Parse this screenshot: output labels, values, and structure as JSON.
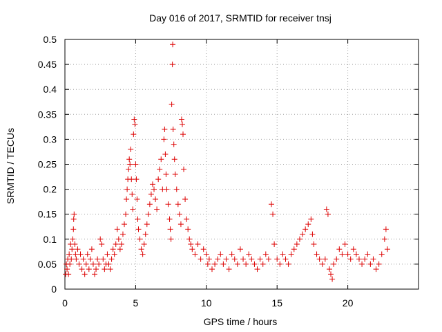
{
  "chart_data": {
    "type": "scatter",
    "title": "Day 016 of 2017, SRMTID for receiver tnsj",
    "xlabel": "GPS time / hours",
    "ylabel": "SRMTID / TECUs",
    "xlim": [
      0,
      25
    ],
    "ylim": [
      0,
      0.5
    ],
    "xticks": [
      0,
      5,
      10,
      15,
      20
    ],
    "xtick_labels": [
      "0",
      "5",
      "10",
      "15",
      "20"
    ],
    "yticks": [
      0,
      0.05,
      0.1,
      0.15,
      0.2,
      0.25,
      0.3,
      0.35,
      0.4,
      0.45,
      0.5
    ],
    "ytick_labels": [
      "0",
      "0.05",
      "0.1",
      "0.15",
      "0.2",
      "0.25",
      "0.3",
      "0.35",
      "0.4",
      "0.45",
      "0.5"
    ],
    "grid": true,
    "marker": "plus",
    "marker_color": "#dd0000",
    "series": [
      {
        "name": "SRMTID",
        "points": [
          [
            0.05,
            0.03
          ],
          [
            0.1,
            0.05
          ],
          [
            0.15,
            0.04
          ],
          [
            0.2,
            0.06
          ],
          [
            0.25,
            0.03
          ],
          [
            0.3,
            0.07
          ],
          [
            0.35,
            0.05
          ],
          [
            0.4,
            0.09
          ],
          [
            0.45,
            0.06
          ],
          [
            0.5,
            0.08
          ],
          [
            0.55,
            0.1
          ],
          [
            0.6,
            0.12
          ],
          [
            0.62,
            0.14
          ],
          [
            0.65,
            0.15
          ],
          [
            0.7,
            0.09
          ],
          [
            0.75,
            0.07
          ],
          [
            0.8,
            0.06
          ],
          [
            0.9,
            0.08
          ],
          [
            1.0,
            0.05
          ],
          [
            1.1,
            0.07
          ],
          [
            1.2,
            0.04
          ],
          [
            1.3,
            0.06
          ],
          [
            1.4,
            0.03
          ],
          [
            1.5,
            0.05
          ],
          [
            1.6,
            0.07
          ],
          [
            1.7,
            0.04
          ],
          [
            1.8,
            0.06
          ],
          [
            1.9,
            0.08
          ],
          [
            2.0,
            0.05
          ],
          [
            2.1,
            0.03
          ],
          [
            2.2,
            0.04
          ],
          [
            2.3,
            0.06
          ],
          [
            2.4,
            0.05
          ],
          [
            2.5,
            0.1
          ],
          [
            2.6,
            0.09
          ],
          [
            2.7,
            0.06
          ],
          [
            2.8,
            0.04
          ],
          [
            2.9,
            0.05
          ],
          [
            3.0,
            0.07
          ],
          [
            3.1,
            0.05
          ],
          [
            3.2,
            0.04
          ],
          [
            3.3,
            0.06
          ],
          [
            3.4,
            0.08
          ],
          [
            3.5,
            0.07
          ],
          [
            3.6,
            0.09
          ],
          [
            3.7,
            0.12
          ],
          [
            3.8,
            0.1
          ],
          [
            3.9,
            0.08
          ],
          [
            4.0,
            0.09
          ],
          [
            4.1,
            0.11
          ],
          [
            4.2,
            0.13
          ],
          [
            4.3,
            0.15
          ],
          [
            4.35,
            0.18
          ],
          [
            4.4,
            0.2
          ],
          [
            4.45,
            0.22
          ],
          [
            4.5,
            0.24
          ],
          [
            4.55,
            0.26
          ],
          [
            4.6,
            0.25
          ],
          [
            4.65,
            0.28
          ],
          [
            4.7,
            0.22
          ],
          [
            4.75,
            0.19
          ],
          [
            4.8,
            0.16
          ],
          [
            4.85,
            0.31
          ],
          [
            4.9,
            0.34
          ],
          [
            4.95,
            0.33
          ],
          [
            5.0,
            0.25
          ],
          [
            5.05,
            0.22
          ],
          [
            5.1,
            0.18
          ],
          [
            5.15,
            0.14
          ],
          [
            5.2,
            0.12
          ],
          [
            5.3,
            0.1
          ],
          [
            5.4,
            0.08
          ],
          [
            5.5,
            0.07
          ],
          [
            5.6,
            0.09
          ],
          [
            5.7,
            0.11
          ],
          [
            5.8,
            0.13
          ],
          [
            5.9,
            0.15
          ],
          [
            6.0,
            0.17
          ],
          [
            6.1,
            0.19
          ],
          [
            6.2,
            0.21
          ],
          [
            6.3,
            0.2
          ],
          [
            6.4,
            0.18
          ],
          [
            6.5,
            0.16
          ],
          [
            6.6,
            0.22
          ],
          [
            6.7,
            0.24
          ],
          [
            6.8,
            0.26
          ],
          [
            6.9,
            0.2
          ],
          [
            7.0,
            0.3
          ],
          [
            7.05,
            0.32
          ],
          [
            7.1,
            0.27
          ],
          [
            7.15,
            0.23
          ],
          [
            7.2,
            0.2
          ],
          [
            7.3,
            0.17
          ],
          [
            7.4,
            0.14
          ],
          [
            7.45,
            0.12
          ],
          [
            7.5,
            0.1
          ],
          [
            7.55,
            0.37
          ],
          [
            7.6,
            0.45
          ],
          [
            7.62,
            0.49
          ],
          [
            7.65,
            0.32
          ],
          [
            7.7,
            0.29
          ],
          [
            7.75,
            0.26
          ],
          [
            7.8,
            0.23
          ],
          [
            7.9,
            0.2
          ],
          [
            8.0,
            0.17
          ],
          [
            8.1,
            0.15
          ],
          [
            8.2,
            0.13
          ],
          [
            8.25,
            0.34
          ],
          [
            8.3,
            0.33
          ],
          [
            8.35,
            0.31
          ],
          [
            8.4,
            0.24
          ],
          [
            8.5,
            0.18
          ],
          [
            8.6,
            0.14
          ],
          [
            8.7,
            0.12
          ],
          [
            8.8,
            0.1
          ],
          [
            8.9,
            0.09
          ],
          [
            9.0,
            0.08
          ],
          [
            9.2,
            0.07
          ],
          [
            9.4,
            0.09
          ],
          [
            9.6,
            0.06
          ],
          [
            9.8,
            0.08
          ],
          [
            10.0,
            0.07
          ],
          [
            10.1,
            0.05
          ],
          [
            10.2,
            0.06
          ],
          [
            10.4,
            0.04
          ],
          [
            10.6,
            0.05
          ],
          [
            10.8,
            0.06
          ],
          [
            11.0,
            0.07
          ],
          [
            11.2,
            0.05
          ],
          [
            11.4,
            0.06
          ],
          [
            11.6,
            0.04
          ],
          [
            11.8,
            0.07
          ],
          [
            12.0,
            0.06
          ],
          [
            12.2,
            0.05
          ],
          [
            12.4,
            0.08
          ],
          [
            12.6,
            0.06
          ],
          [
            12.8,
            0.05
          ],
          [
            13.0,
            0.07
          ],
          [
            13.2,
            0.06
          ],
          [
            13.4,
            0.05
          ],
          [
            13.6,
            0.04
          ],
          [
            13.8,
            0.06
          ],
          [
            14.0,
            0.05
          ],
          [
            14.2,
            0.07
          ],
          [
            14.4,
            0.06
          ],
          [
            14.6,
            0.17
          ],
          [
            14.7,
            0.15
          ],
          [
            14.8,
            0.09
          ],
          [
            15.0,
            0.06
          ],
          [
            15.2,
            0.05
          ],
          [
            15.4,
            0.07
          ],
          [
            15.6,
            0.06
          ],
          [
            15.8,
            0.05
          ],
          [
            16.0,
            0.07
          ],
          [
            16.2,
            0.08
          ],
          [
            16.4,
            0.09
          ],
          [
            16.6,
            0.1
          ],
          [
            16.8,
            0.11
          ],
          [
            17.0,
            0.12
          ],
          [
            17.2,
            0.13
          ],
          [
            17.4,
            0.14
          ],
          [
            17.5,
            0.11
          ],
          [
            17.6,
            0.09
          ],
          [
            17.8,
            0.07
          ],
          [
            18.0,
            0.06
          ],
          [
            18.2,
            0.05
          ],
          [
            18.4,
            0.06
          ],
          [
            18.5,
            0.16
          ],
          [
            18.6,
            0.15
          ],
          [
            18.7,
            0.04
          ],
          [
            18.8,
            0.03
          ],
          [
            18.9,
            0.02
          ],
          [
            19.0,
            0.05
          ],
          [
            19.2,
            0.06
          ],
          [
            19.4,
            0.08
          ],
          [
            19.6,
            0.07
          ],
          [
            19.8,
            0.09
          ],
          [
            20.0,
            0.07
          ],
          [
            20.2,
            0.06
          ],
          [
            20.4,
            0.08
          ],
          [
            20.6,
            0.07
          ],
          [
            20.8,
            0.06
          ],
          [
            21.0,
            0.05
          ],
          [
            21.2,
            0.06
          ],
          [
            21.4,
            0.07
          ],
          [
            21.6,
            0.05
          ],
          [
            21.8,
            0.06
          ],
          [
            22.0,
            0.04
          ],
          [
            22.2,
            0.05
          ],
          [
            22.4,
            0.07
          ],
          [
            22.6,
            0.1
          ],
          [
            22.7,
            0.12
          ],
          [
            22.8,
            0.08
          ]
        ]
      }
    ]
  }
}
